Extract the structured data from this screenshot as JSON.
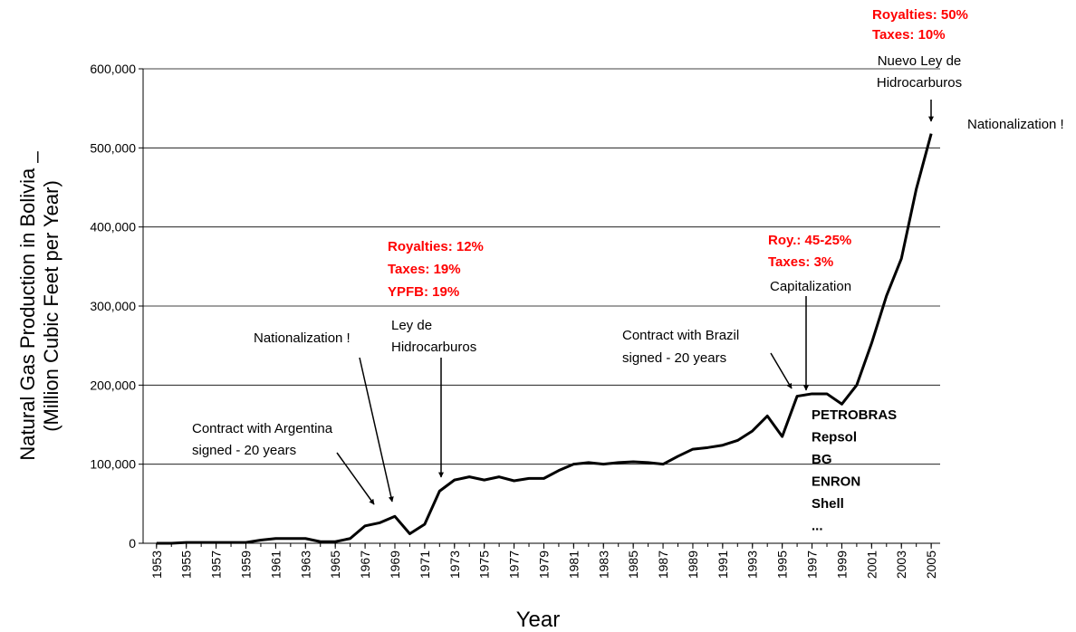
{
  "chart_data": {
    "type": "line",
    "y_label": [
      "Natural Gas Production in Bolivia _",
      "(Million Cubic Feet per Year)"
    ],
    "x_label": "Year",
    "x": [
      1953,
      1954,
      1955,
      1956,
      1957,
      1958,
      1959,
      1960,
      1961,
      1962,
      1963,
      1964,
      1965,
      1966,
      1967,
      1968,
      1969,
      1970,
      1971,
      1972,
      1973,
      1974,
      1975,
      1976,
      1977,
      1978,
      1979,
      1980,
      1981,
      1982,
      1983,
      1984,
      1985,
      1986,
      1987,
      1988,
      1989,
      1990,
      1991,
      1992,
      1993,
      1994,
      1995,
      1996,
      1997,
      1998,
      1999,
      2000,
      2001,
      2002,
      2003,
      2004,
      2005
    ],
    "series": [
      {
        "color": "#000000",
        "values": [
          0,
          0,
          1000,
          1000,
          1000,
          1000,
          1000,
          4000,
          6000,
          6000,
          6000,
          2000,
          2000,
          6000,
          22000,
          26000,
          34000,
          12000,
          24000,
          66000,
          80000,
          84000,
          80000,
          84000,
          79000,
          82000,
          82000,
          92000,
          100000,
          102000,
          100000,
          102000,
          103000,
          102000,
          100000,
          110000,
          119000,
          121000,
          124000,
          130000,
          142000,
          161000,
          135000,
          186000,
          189000,
          189000,
          176000,
          200000,
          253000,
          313000,
          360000,
          448000,
          518000
        ]
      }
    ],
    "xlim": [
      1952.1,
      2005.6
    ],
    "xticks": [
      1953,
      1955,
      1957,
      1959,
      1961,
      1963,
      1965,
      1967,
      1969,
      1971,
      1973,
      1975,
      1977,
      1979,
      1981,
      1983,
      1985,
      1987,
      1989,
      1991,
      1993,
      1995,
      1997,
      1999,
      2001,
      2003,
      2005
    ],
    "ylim": [
      0,
      600000
    ],
    "yticks": [
      0,
      {
        "value": 100000,
        "label": "100,000"
      },
      {
        "value": 200000,
        "label": "200,000"
      },
      {
        "value": 300000,
        "label": "300,000"
      },
      {
        "value": 400000,
        "label": "400,000"
      },
      {
        "value": 500000,
        "label": "500,000"
      },
      {
        "value": 600000,
        "label": "600,000"
      }
    ],
    "grid": true,
    "annotations": [
      {
        "lines": [
          "Royalties: 50%",
          "Taxes: 10%"
        ],
        "color": "#ff0000",
        "bold": true
      },
      {
        "lines": [
          "Nuevo Ley de",
          "Hidrocarburos"
        ],
        "color": "#000000",
        "bold": false
      },
      {
        "lines": [
          "Nationalization !"
        ],
        "color": "#000000",
        "bold": false
      },
      {
        "lines": [
          "Royalties: 12%",
          "Taxes: 19%",
          "YPFB: 19%"
        ],
        "color": "#ff0000",
        "bold": true
      },
      {
        "lines": [
          "Roy.: 45-25%",
          "Taxes: 3%"
        ],
        "color": "#ff0000",
        "bold": true
      },
      {
        "lines": [
          "Capitalization"
        ],
        "color": "#000000",
        "bold": false
      },
      {
        "lines": [
          "Ley de",
          "Hidrocarburos"
        ],
        "color": "#000000",
        "bold": false
      },
      {
        "lines": [
          "Nationalization !"
        ],
        "color": "#000000",
        "bold": false
      },
      {
        "lines": [
          "Contract with Brazil",
          "signed - 20 years"
        ],
        "color": "#000000",
        "bold": false
      },
      {
        "lines": [
          "Contract with Argentina",
          "signed - 20 years"
        ],
        "color": "#000000",
        "bold": false
      },
      {
        "lines": [
          "PETROBRAS",
          "Repsol",
          "BG",
          "ENRON",
          "Shell",
          "..."
        ],
        "color": "#000000",
        "bold": true
      }
    ]
  }
}
